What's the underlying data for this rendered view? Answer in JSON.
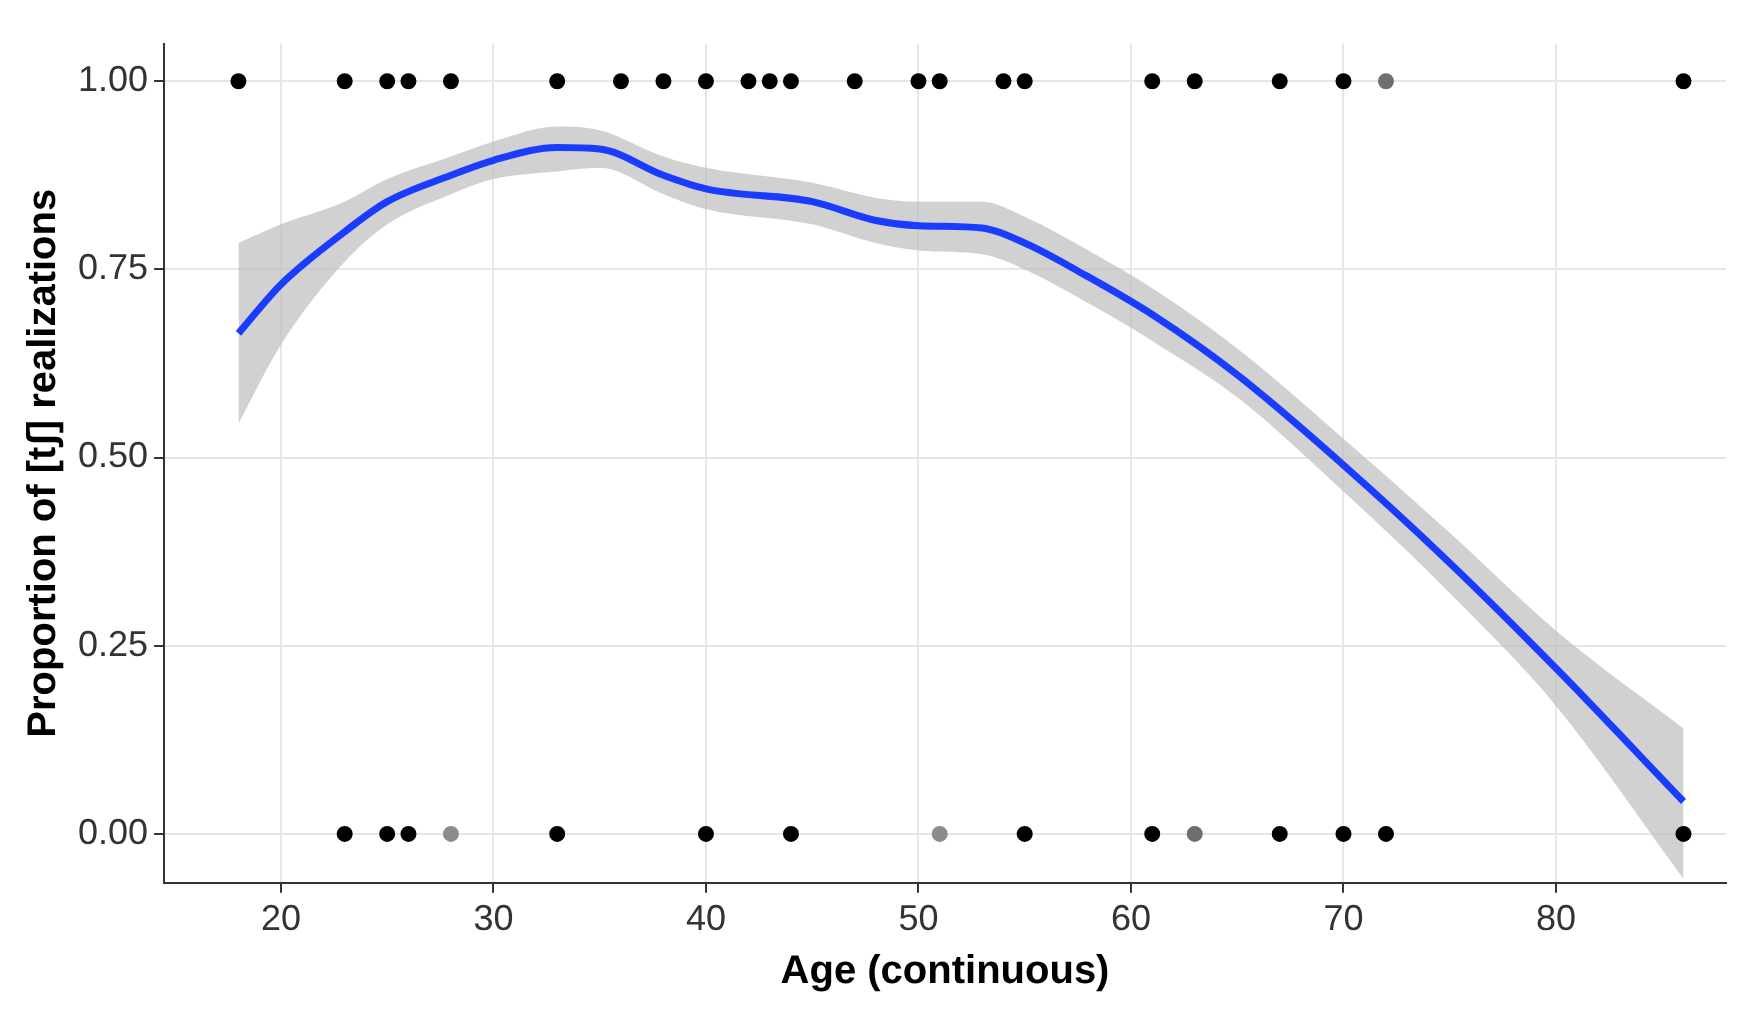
{
  "chart_data": {
    "type": "scatter",
    "xlabel": "Age (continuous)",
    "ylabel": "Proportion of [tʃ] realizations",
    "xlim": [
      14.5,
      88
    ],
    "xticks": [
      20,
      30,
      40,
      50,
      60,
      70,
      80
    ],
    "ylim": [
      -0.065,
      1.05
    ],
    "yticks": [
      {
        "value": 0,
        "label": "0.00"
      },
      {
        "value": 0.25,
        "label": "0.25"
      },
      {
        "value": 0.5,
        "label": "0.50"
      },
      {
        "value": 0.75,
        "label": "0.75"
      },
      {
        "value": 1,
        "label": "1.00"
      }
    ],
    "grid": true,
    "legend": false,
    "marker": "circle",
    "series": [
      {
        "type": "line",
        "color": "#1a3cff",
        "marker": "none",
        "x": [
          18,
          20,
          23,
          25,
          28,
          30,
          33,
          35,
          38,
          40,
          45,
          48,
          50,
          53,
          55,
          58,
          61,
          65,
          70,
          75,
          80,
          86
        ],
        "values": [
          0.665,
          0.73,
          0.8,
          0.84,
          0.875,
          0.895,
          0.912,
          0.91,
          0.875,
          0.857,
          0.84,
          0.815,
          0.808,
          0.805,
          0.785,
          0.74,
          0.69,
          0.61,
          0.49,
          0.36,
          0.22,
          0.043
        ],
        "lower": [
          0.545,
          0.65,
          0.76,
          0.81,
          0.85,
          0.87,
          0.88,
          0.885,
          0.85,
          0.83,
          0.81,
          0.785,
          0.775,
          0.77,
          0.75,
          0.705,
          0.655,
          0.58,
          0.455,
          0.32,
          0.17,
          -0.06
        ],
        "upper": [
          0.785,
          0.81,
          0.84,
          0.87,
          0.9,
          0.92,
          0.94,
          0.935,
          0.9,
          0.885,
          0.865,
          0.845,
          0.84,
          0.84,
          0.82,
          0.775,
          0.725,
          0.645,
          0.525,
          0.4,
          0.27,
          0.14
        ]
      },
      {
        "type": "scatter",
        "color": "#000000",
        "x": [
          18,
          23,
          25,
          26,
          28,
          33,
          36,
          38,
          40,
          42,
          43,
          44,
          47,
          50,
          51,
          54,
          55,
          61,
          63,
          67,
          70,
          72,
          86,
          23,
          25,
          26,
          28,
          33,
          40,
          44,
          51,
          55,
          61,
          63,
          67,
          70,
          72,
          86
        ],
        "values": [
          1,
          1,
          1,
          1,
          1,
          1,
          1,
          1,
          1,
          1,
          1,
          1,
          1,
          1,
          1,
          1,
          1,
          1,
          1,
          1,
          1,
          1,
          1,
          0,
          0,
          0,
          0,
          0,
          0,
          0,
          0,
          0,
          0,
          0,
          0,
          0,
          0,
          0
        ],
        "colors": [
          null,
          null,
          null,
          null,
          null,
          null,
          null,
          null,
          null,
          null,
          null,
          null,
          null,
          null,
          null,
          null,
          null,
          null,
          null,
          null,
          null,
          "#6e6e6e",
          null,
          null,
          null,
          null,
          "#8c8c8c",
          null,
          null,
          null,
          "#8c8c8c",
          null,
          null,
          "#6e6e6e",
          null,
          null,
          null,
          null
        ]
      }
    ]
  }
}
